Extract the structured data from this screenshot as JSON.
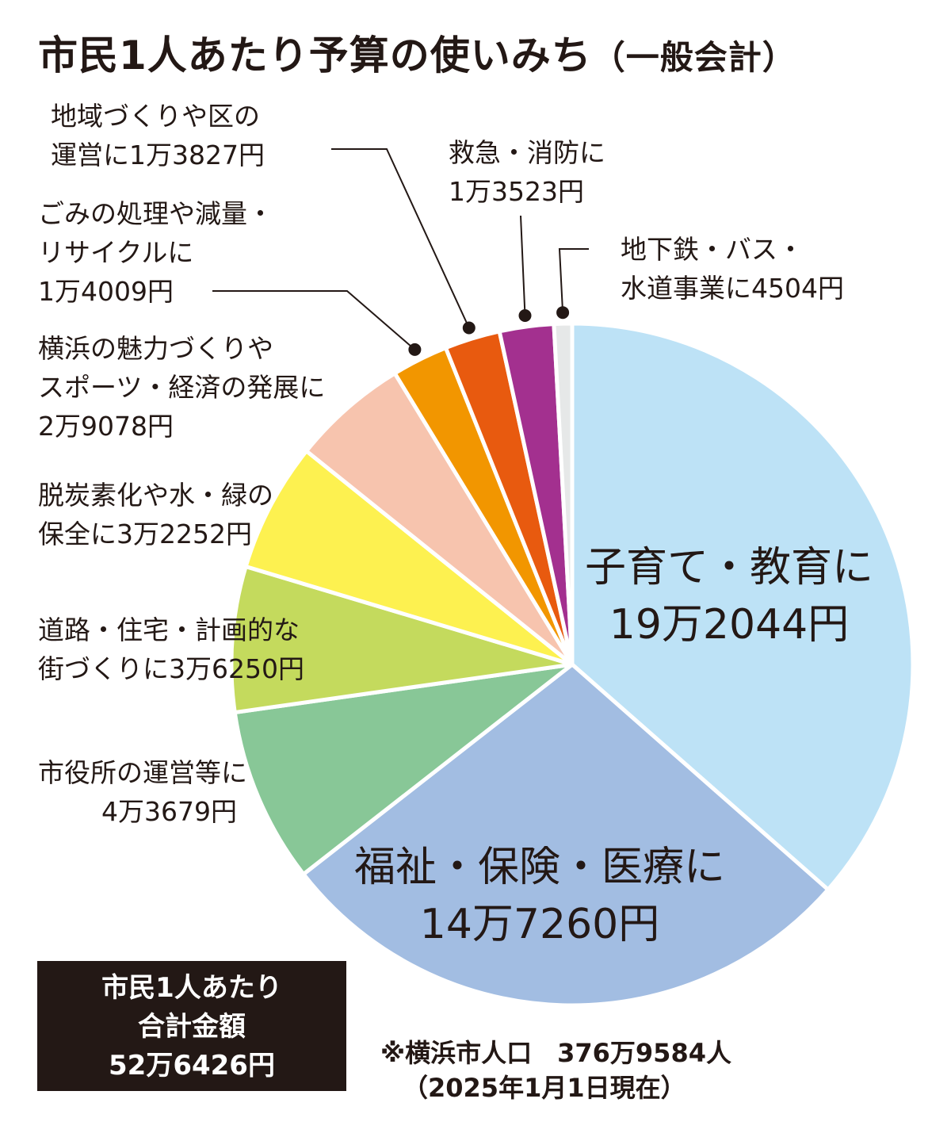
{
  "title": "市民1人あたり予算の使いみち",
  "title_suffix": "（一般会計）",
  "chart_data": {
    "type": "pie",
    "unit": "円",
    "start_angle_deg": 0,
    "direction": "clockwise",
    "slices": [
      {
        "label": "子育て・教育に",
        "amount": "19万2044円",
        "value": 192044,
        "color": "#bde2f6"
      },
      {
        "label": "福祉・保険・医療に",
        "amount": "14万7260円",
        "value": 147260,
        "color": "#a2bde2"
      },
      {
        "label": "市役所の運営等に",
        "amount": "4万3679円",
        "value": 43679,
        "color": "#88c797"
      },
      {
        "label": "道路・住宅・計画的な街づくりに",
        "amount": "3万6250円",
        "value": 36250,
        "color": "#c4da5d"
      },
      {
        "label": "脱炭素化や水・緑の保全に",
        "amount": "3万2252円",
        "value": 32252,
        "color": "#fdf150"
      },
      {
        "label": "横浜の魅力づくりやスポーツ・経済の発展に",
        "amount": "2万9078円",
        "value": 29078,
        "color": "#f7c4ae"
      },
      {
        "label": "ごみの処理や減量・リサイクルに",
        "amount": "1万4009円",
        "value": 14009,
        "color": "#f29600"
      },
      {
        "label": "地域づくりや区の運営に",
        "amount": "1万3827円",
        "value": 13827,
        "color": "#e85a0f"
      },
      {
        "label": "救急・消防に",
        "amount": "1万3523円",
        "value": 13523,
        "color": "#a3308f"
      },
      {
        "label": "地下鉄・バス・水道事業に",
        "amount": "4504円",
        "value": 4504,
        "color": "#e6e8e8"
      }
    ]
  },
  "labels": {
    "kosodate": {
      "line1": "子育て・教育に",
      "line2": "19万2044円"
    },
    "fukushi": {
      "line1": "福祉・保険・医療に",
      "line2": "14万7260円"
    },
    "shiyakusho": {
      "line1": "市役所の運営等に",
      "line2": "4万3679円"
    },
    "doro": {
      "line1": "道路・住宅・計画的な",
      "line2": "街づくりに3万6250円"
    },
    "datsutanso": {
      "line1": "脱炭素化や水・緑の",
      "line2": "保全に3万2252円"
    },
    "miryoku": {
      "line1": "横浜の魅力づくりや",
      "line2": "スポーツ・経済の発展に",
      "line3": "2万9078円"
    },
    "gomi": {
      "line1": "ごみの処理や減量・",
      "line2": "リサイクルに",
      "line3": "1万4009円"
    },
    "chiiki": {
      "line1": "地域づくりや区の",
      "line2": "運営に1万3827円"
    },
    "kyukyu": {
      "line1": "救急・消防に",
      "line2": "1万3523円"
    },
    "chikatetsu": {
      "line1": "地下鉄・バス・",
      "line2": "水道事業に4504円"
    }
  },
  "total": {
    "line1": "市民1人あたり",
    "line2": "合計金額",
    "line3": "52万6426円"
  },
  "note": {
    "line1": "※横浜市人口　376万9584人",
    "line2": "（2025年1月1日現在）"
  }
}
